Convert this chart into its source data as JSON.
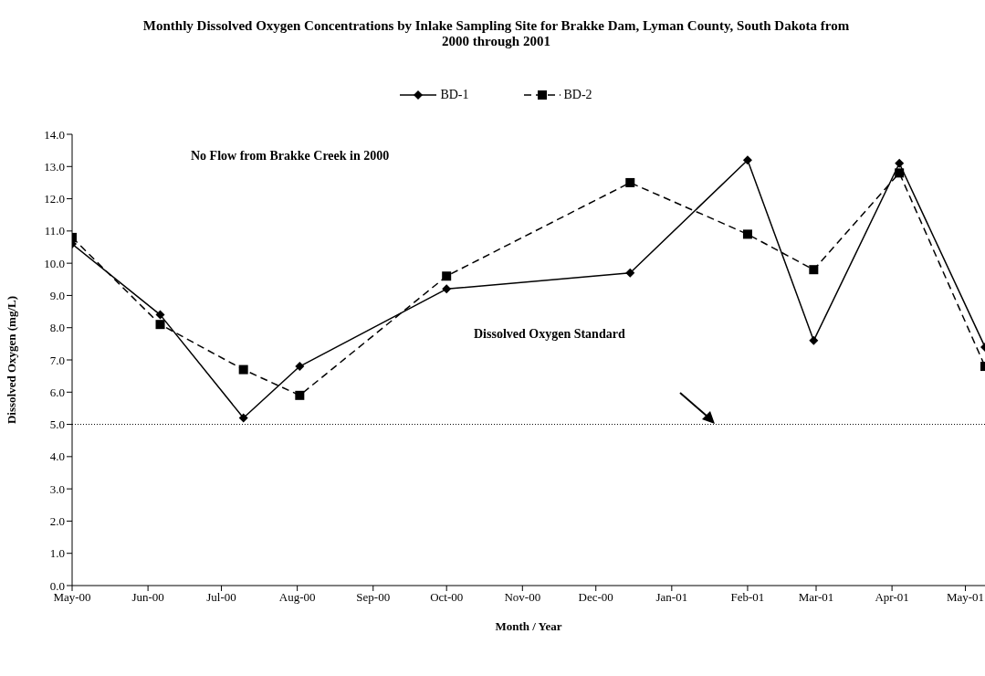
{
  "chart_data": {
    "type": "line",
    "title": "Monthly Dissolved Oxygen Concentrations by Inlake Sampling Site for Brakke Dam, Lyman County, South Dakota from 2000 through 2001",
    "xlabel": "Month / Year",
    "ylabel": "Dissolved Oxygen (mg/L)",
    "x": [
      "2000-05-01",
      "2000-06-06",
      "2000-07-10",
      "2000-08-02",
      "2000-10-01",
      "2000-12-15",
      "2001-02-01",
      "2001-02-28",
      "2001-04-04",
      "2001-05-09"
    ],
    "series": [
      {
        "name": "BD-1",
        "color": "#000000",
        "marker": "diamond",
        "line_style": "solid",
        "values": [
          10.6,
          8.4,
          5.2,
          6.8,
          9.2,
          9.7,
          13.2,
          7.6,
          13.1,
          7.4
        ]
      },
      {
        "name": "BD-2",
        "color": "#000000",
        "marker": "square",
        "line_style": "dashed",
        "values": [
          10.8,
          8.1,
          6.7,
          5.9,
          9.6,
          12.5,
          10.9,
          9.8,
          12.8,
          6.8
        ]
      }
    ],
    "xlim": [
      "2000-05-01",
      "2001-05-09"
    ],
    "xticks": [
      {
        "value": "2000-05-01",
        "label": "May-00"
      },
      {
        "value": "2000-06-01",
        "label": "Jun-00"
      },
      {
        "value": "2000-07-01",
        "label": "Jul-00"
      },
      {
        "value": "2000-08-01",
        "label": "Aug-00"
      },
      {
        "value": "2000-09-01",
        "label": "Sep-00"
      },
      {
        "value": "2000-10-01",
        "label": "Oct-00"
      },
      {
        "value": "2000-11-01",
        "label": "Nov-00"
      },
      {
        "value": "2000-12-01",
        "label": "Dec-00"
      },
      {
        "value": "2001-01-01",
        "label": "Jan-01"
      },
      {
        "value": "2001-02-01",
        "label": "Feb-01"
      },
      {
        "value": "2001-03-01",
        "label": "Mar-01"
      },
      {
        "value": "2001-04-01",
        "label": "Apr-01"
      },
      {
        "value": "2001-05-01",
        "label": "May-01"
      }
    ],
    "ylim": [
      0,
      14
    ],
    "yticks": [
      {
        "value": 0,
        "label": "0.0"
      },
      {
        "value": 1,
        "label": "1.0"
      },
      {
        "value": 2,
        "label": "2.0"
      },
      {
        "value": 3,
        "label": "3.0"
      },
      {
        "value": 4,
        "label": "4.0"
      },
      {
        "value": 5,
        "label": "5.0"
      },
      {
        "value": 6,
        "label": "6.0"
      },
      {
        "value": 7,
        "label": "7.0"
      },
      {
        "value": 8,
        "label": "8.0"
      },
      {
        "value": 9,
        "label": "9.0"
      },
      {
        "value": 10,
        "label": "10.0"
      },
      {
        "value": 11,
        "label": "11.0"
      },
      {
        "value": 12,
        "label": "12.0"
      },
      {
        "value": 13,
        "label": "13.0"
      },
      {
        "value": 14,
        "label": "14.0"
      }
    ],
    "ref_lines": [
      {
        "axis": "y",
        "value": 5,
        "color": "#000000",
        "line_style": "dotted"
      }
    ],
    "annotations": [
      "No Flow from Brakke Creek in 2000",
      "Dissolved Oxygen Standard"
    ],
    "grid": false,
    "legend": "top"
  }
}
